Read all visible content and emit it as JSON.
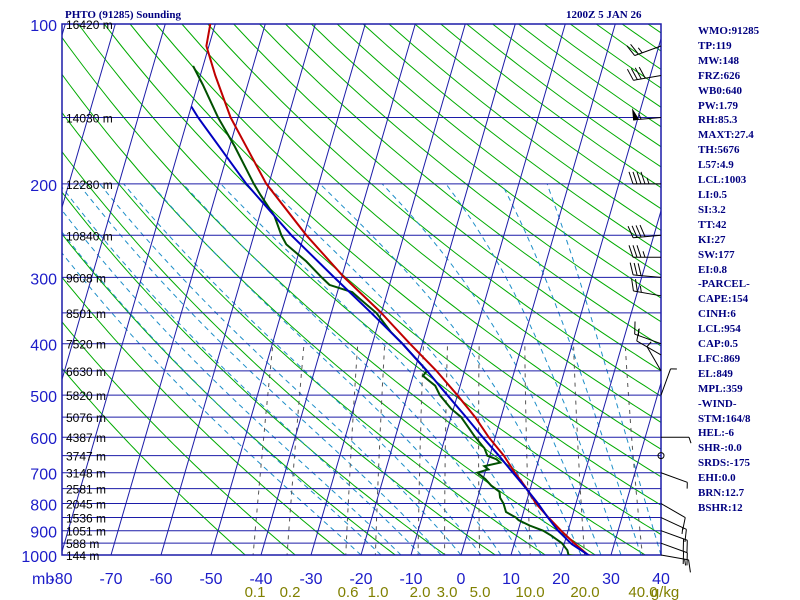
{
  "title": "PHTO (91285) Sounding",
  "datetime": "1200Z  5 JAN 26",
  "indices": [
    "WMO:91285",
    "TP:119",
    "MW:148",
    "FRZ:626",
    "WB0:640",
    "PW:1.79",
    "RH:85.3",
    "MAXT:27.4",
    "TH:5676",
    "L57:4.9",
    "LCL:1003",
    "LI:0.5",
    "SI:3.2",
    "TT:42",
    "KI:27",
    "SW:177",
    "EI:0.8",
    "-PARCEL-",
    "CAPE:154",
    "CINH:6",
    "LCL:954",
    "CAP:0.5",
    "LFC:869",
    "EL:849",
    "MPL:359",
    "-WIND-",
    "STM:164/8",
    "HEL:-6",
    "SHR-:0.0",
    "SRDS:-175",
    "EHI:0.0",
    "BRN:12.7",
    "BSHR:12"
  ],
  "colors": {
    "grid": "#1c1ca8",
    "dry_adiabat": "#00aa00",
    "moist_adiabat": "#1e8ec8",
    "mixing_ratio": "#555555",
    "temperature": "#c00000",
    "dewpoint": "#005000",
    "parcel": "#0000c0",
    "label": "#1c1cc8",
    "mixing_label": "#808000",
    "axis_text": "#000080"
  },
  "chart_data": {
    "type": "line",
    "title": "PHTO (91285) Sounding",
    "xlabel": "",
    "ylabel": "mb",
    "pressure_levels": [
      100,
      200,
      300,
      400,
      500,
      600,
      700,
      800,
      900,
      1000
    ],
    "temp_ticks": [
      -80,
      -70,
      -60,
      -50,
      -40,
      -30,
      -20,
      -10,
      0,
      10,
      20,
      30,
      40
    ],
    "xlim": [
      -80,
      40
    ],
    "ylim": [
      1000,
      100
    ],
    "y_scale": "log",
    "skew": true,
    "grid": true,
    "height_labels": [
      {
        "p": 100,
        "label": "16420 m"
      },
      {
        "p": 150,
        "label": "14030 m"
      },
      {
        "p": 200,
        "label": "12280 m"
      },
      {
        "p": 250,
        "label": "10840 m"
      },
      {
        "p": 300,
        "label": "9608 m"
      },
      {
        "p": 350,
        "label": "8501 m"
      },
      {
        "p": 400,
        "label": "7520 m"
      },
      {
        "p": 450,
        "label": "6630 m"
      },
      {
        "p": 500,
        "label": "5820 m"
      },
      {
        "p": 550,
        "label": "5076 m"
      },
      {
        "p": 600,
        "label": "4387 m"
      },
      {
        "p": 650,
        "label": "3747 m"
      },
      {
        "p": 700,
        "label": "3148 m"
      },
      {
        "p": 750,
        "label": "2581 m"
      },
      {
        "p": 800,
        "label": "2045 m"
      },
      {
        "p": 850,
        "label": "1536 m"
      },
      {
        "p": 900,
        "label": "1051 m"
      },
      {
        "p": 950,
        "label": "588 m"
      },
      {
        "p": 1000,
        "label": "144 m"
      }
    ],
    "mixing_ratio_labels": [
      "0.1",
      "0.2",
      "0.6",
      "1.0",
      "2.0",
      "3.0",
      "5.0",
      "10.0",
      "20.0",
      "40.0",
      "g/kg"
    ],
    "series": [
      {
        "key": "temperature",
        "points": [
          [
            1004,
            26.2
          ],
          [
            1000,
            25.4
          ],
          [
            950,
            22.0
          ],
          [
            900,
            18.6
          ],
          [
            850,
            15.3
          ],
          [
            800,
            12.0
          ],
          [
            750,
            9.3
          ],
          [
            700,
            6.0
          ],
          [
            650,
            2.8
          ],
          [
            600,
            -1.3
          ],
          [
            550,
            -5.2
          ],
          [
            500,
            -10.0
          ],
          [
            450,
            -15.6
          ],
          [
            400,
            -22.5
          ],
          [
            350,
            -30.0
          ],
          [
            300,
            -39.5
          ],
          [
            250,
            -49.5
          ],
          [
            200,
            -60.5
          ],
          [
            150,
            -71.5
          ],
          [
            125,
            -77.0
          ],
          [
            110,
            -80.5
          ],
          [
            100,
            -81.0
          ]
        ]
      },
      {
        "key": "dewpoint",
        "points": [
          [
            1004,
            22.8
          ],
          [
            1000,
            21.5
          ],
          [
            980,
            21.0
          ],
          [
            950,
            19.5
          ],
          [
            920,
            17.0
          ],
          [
            900,
            15.0
          ],
          [
            880,
            12.0
          ],
          [
            860,
            9.5
          ],
          [
            850,
            8.8
          ],
          [
            830,
            6.5
          ],
          [
            800,
            5.5
          ],
          [
            780,
            4.5
          ],
          [
            760,
            4.0
          ],
          [
            740,
            2.0
          ],
          [
            720,
            0.5
          ],
          [
            700,
            -1.5
          ],
          [
            690,
            0.5
          ],
          [
            680,
            -0.5
          ],
          [
            670,
            2.5
          ],
          [
            660,
            1.5
          ],
          [
            650,
            -0.5
          ],
          [
            630,
            -1.5
          ],
          [
            600,
            -4.0
          ],
          [
            550,
            -8.0
          ],
          [
            530,
            -10.5
          ],
          [
            500,
            -13.5
          ],
          [
            480,
            -15.0
          ],
          [
            460,
            -18.0
          ],
          [
            450,
            -17.5
          ],
          [
            430,
            -20.0
          ],
          [
            400,
            -24.0
          ],
          [
            380,
            -27.0
          ],
          [
            350,
            -31.0
          ],
          [
            330,
            -35.0
          ],
          [
            320,
            -37.0
          ],
          [
            310,
            -42.0
          ],
          [
            300,
            -44.0
          ],
          [
            280,
            -48.0
          ],
          [
            260,
            -53.0
          ],
          [
            250,
            -54.5
          ],
          [
            230,
            -57.0
          ],
          [
            210,
            -61.0
          ],
          [
            200,
            -63.0
          ],
          [
            170,
            -69.0
          ],
          [
            150,
            -74.0
          ],
          [
            130,
            -79.0
          ],
          [
            120,
            -82.0
          ]
        ]
      },
      {
        "key": "parcel",
        "points": [
          [
            1004,
            25.8
          ],
          [
            954,
            21.5
          ],
          [
            900,
            18.0
          ],
          [
            850,
            15.2
          ],
          [
            800,
            12.4
          ],
          [
            750,
            9.2
          ],
          [
            700,
            5.6
          ],
          [
            650,
            1.8
          ],
          [
            600,
            -2.5
          ],
          [
            550,
            -7.0
          ],
          [
            500,
            -12.0
          ],
          [
            450,
            -17.5
          ],
          [
            400,
            -24.0
          ],
          [
            350,
            -32.0
          ],
          [
            300,
            -41.5
          ],
          [
            250,
            -52.5
          ],
          [
            200,
            -64.5
          ],
          [
            150,
            -78.0
          ],
          [
            143,
            -80.0
          ]
        ]
      }
    ],
    "wind_barbs": [
      {
        "p": 110,
        "dir": 250,
        "spd": 25
      },
      {
        "p": 125,
        "dir": 260,
        "spd": 40
      },
      {
        "p": 150,
        "dir": 265,
        "spd": 55
      },
      {
        "p": 200,
        "dir": 270,
        "spd": 45
      },
      {
        "p": 250,
        "dir": 265,
        "spd": 40
      },
      {
        "p": 275,
        "dir": 270,
        "spd": 35
      },
      {
        "p": 300,
        "dir": 275,
        "spd": 30
      },
      {
        "p": 325,
        "dir": 280,
        "spd": 25
      },
      {
        "p": 400,
        "dir": 290,
        "spd": 15
      },
      {
        "p": 420,
        "dir": 300,
        "spd": 10
      },
      {
        "p": 450,
        "dir": 330,
        "spd": 5
      },
      {
        "p": 500,
        "dir": 20,
        "spd": 5
      },
      {
        "p": 600,
        "dir": 90,
        "spd": 5
      },
      {
        "p": 650,
        "dir": 100,
        "spd": 0
      },
      {
        "p": 700,
        "dir": 110,
        "spd": 5
      },
      {
        "p": 800,
        "dir": 120,
        "spd": 10
      },
      {
        "p": 850,
        "dir": 115,
        "spd": 15
      },
      {
        "p": 900,
        "dir": 110,
        "spd": 20
      },
      {
        "p": 950,
        "dir": 110,
        "spd": 20
      },
      {
        "p": 1000,
        "dir": 100,
        "spd": 15
      }
    ]
  }
}
